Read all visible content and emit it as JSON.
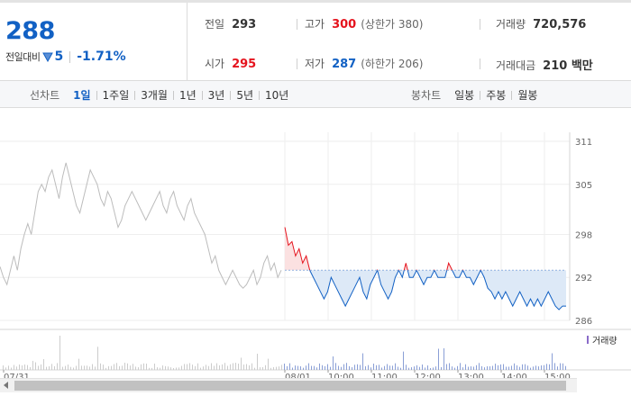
{
  "summary": {
    "price": "288",
    "change_label": "전일대비",
    "change_value": "5",
    "change_pct": "-1.71%",
    "stats": [
      {
        "label": "전일",
        "value": "293",
        "tone": "",
        "sub": ""
      },
      {
        "label": "고가",
        "value": "300",
        "tone": "up",
        "sub": "(상한가 380)"
      },
      {
        "label": "거래량",
        "value": "720,576",
        "tone": "",
        "sub": ""
      },
      {
        "label": "시가",
        "value": "295",
        "tone": "up",
        "sub": ""
      },
      {
        "label": "저가",
        "value": "287",
        "tone": "down",
        "sub": "(하한가 206)"
      },
      {
        "label": "거래대금",
        "value": "210 백만",
        "tone": "",
        "sub": ""
      }
    ]
  },
  "line_chart": {
    "label": "선차트",
    "periods": [
      "1일",
      "1주일",
      "3개월",
      "1년",
      "3년",
      "5년",
      "10년"
    ],
    "active": "1일"
  },
  "candle_chart": {
    "label": "봉차트",
    "periods": [
      "일봉",
      "주봉",
      "월봉"
    ]
  },
  "chart_data": {
    "type": "line",
    "y_ticks": [
      "311",
      "305",
      "298",
      "292",
      "286"
    ],
    "ylim": [
      286,
      311
    ],
    "reference_price": 293,
    "volume_label": "거래량",
    "x_tick_labels": [
      "07/31",
      "08/01",
      "10:00",
      "11:00",
      "12:00",
      "13:00",
      "14:00",
      "15:00"
    ],
    "series": [
      {
        "values": [
          293.5,
          292,
          291,
          293,
          295,
          293,
          296,
          298,
          299.5,
          298,
          301,
          304,
          305,
          304,
          306,
          307,
          305,
          303,
          306,
          308,
          306,
          304,
          302,
          301,
          303,
          305,
          307,
          306,
          305,
          303,
          302,
          304,
          303,
          301,
          299,
          300,
          302,
          303,
          304,
          303,
          302,
          301,
          300,
          301,
          302,
          303,
          304,
          302,
          301,
          303,
          304,
          302,
          301,
          300,
          302,
          303,
          301,
          300,
          299,
          298,
          296,
          294,
          295,
          293,
          292,
          291,
          292,
          293,
          292,
          291,
          290.5,
          291,
          292,
          293,
          291,
          292,
          294,
          295,
          293,
          294,
          292,
          293
        ]
      },
      {
        "values": [
          299,
          296.5,
          297,
          295,
          296,
          294,
          295,
          293,
          292,
          291,
          290,
          289,
          290,
          292,
          291,
          290,
          289,
          288,
          289,
          290,
          291,
          292,
          290,
          289,
          291,
          292,
          293,
          291,
          290,
          289,
          290,
          292,
          293,
          292,
          294,
          292,
          292,
          293,
          292,
          291,
          292,
          292,
          293,
          292,
          292,
          292,
          294,
          293,
          292,
          292,
          293,
          292,
          292,
          291,
          292,
          293,
          292,
          290.5,
          290,
          289,
          290,
          289,
          290,
          289,
          288,
          289,
          290,
          289,
          288,
          289,
          288,
          289,
          288,
          289,
          290,
          289,
          288,
          287.5,
          288,
          288
        ]
      }
    ]
  }
}
